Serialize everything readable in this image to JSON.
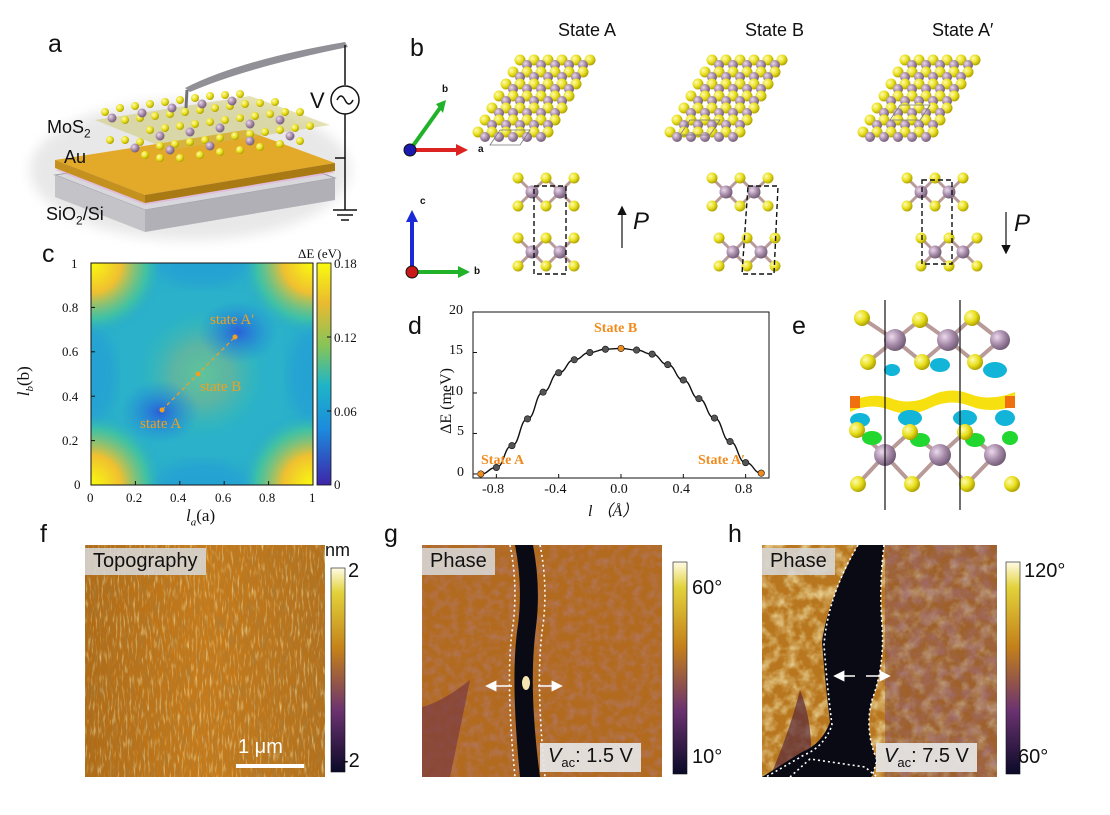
{
  "panels": {
    "a": {
      "letter": "a",
      "labels": {
        "mos2": "MoS",
        "mos2_sub": "2",
        "au": "Au",
        "substrate": "SiO",
        "substrate_sub": "2",
        "substrate_tail": "/Si",
        "voltage": "V"
      }
    },
    "b": {
      "letter": "b",
      "states": [
        "State A",
        "State B",
        "State A′"
      ],
      "axes_top": {
        "a": "a",
        "b": "b"
      },
      "axes_bottom": {
        "c": "c",
        "b": "b"
      },
      "polarization": "P"
    },
    "c": {
      "letter": "c",
      "colorbar_title": "ΔE (eV)",
      "colorbar_ticks": [
        "0.18",
        "0.12",
        "0.06",
        "0"
      ],
      "y_ticks": [
        "1",
        "0.8",
        "0.6",
        "0.4",
        "0.2",
        "0"
      ],
      "x_ticks": [
        "0",
        "0.2",
        "0.4",
        "0.6",
        "0.8",
        "1"
      ],
      "ylabel_main": "l",
      "ylabel_sub": "b",
      "ylabel_tail": "(b)",
      "xlabel_main": "l",
      "xlabel_sub": "a",
      "xlabel_tail": "(a)",
      "annotations": [
        "state A'",
        "state B",
        "state A"
      ],
      "accent": "#f0a020"
    },
    "d": {
      "letter": "d",
      "ylabel": "ΔE (meV)",
      "xlabel": "l （Å）",
      "annotations": [
        "State B",
        "State A",
        "State A′"
      ],
      "accent": "#f08c1e"
    },
    "e": {
      "letter": "e"
    },
    "f": {
      "letter": "f",
      "tag": "Topography",
      "cbar_unit": "nm",
      "cbar_top": "2",
      "cbar_bottom": "-2",
      "scalebar": "1 μm"
    },
    "g": {
      "letter": "g",
      "tag": "Phase",
      "cbar_top": "60°",
      "cbar_bottom": "10°",
      "vac_label": "V",
      "vac_sub": "ac",
      "vac_value": ": 1.5 V"
    },
    "h": {
      "letter": "h",
      "tag": "Phase",
      "cbar_top": "120°",
      "cbar_bottom": "60°",
      "vac_label": "V",
      "vac_sub": "ac",
      "vac_value": ": 7.5 V"
    }
  },
  "chart_data": [
    {
      "type": "line",
      "panel": "d",
      "xlabel": "l （Å）",
      "ylabel": "ΔE (meV)",
      "xlim": [
        -0.95,
        0.95
      ],
      "ylim": [
        -0.5,
        20
      ],
      "x_ticks": [
        -0.8,
        -0.4,
        0.0,
        0.4,
        0.8
      ],
      "y_ticks": [
        0,
        5,
        10,
        15,
        20
      ],
      "series": [
        {
          "x": [
            -0.9,
            -0.8,
            -0.7,
            -0.6,
            -0.5,
            -0.4,
            -0.3,
            -0.2,
            -0.1,
            0.0,
            0.1,
            0.2,
            0.3,
            0.4,
            0.5,
            0.6,
            0.7,
            0.8,
            0.9
          ],
          "values": [
            0.0,
            0.8,
            3.5,
            6.8,
            10.1,
            12.5,
            14.1,
            15.0,
            15.4,
            15.5,
            15.3,
            14.8,
            13.5,
            11.6,
            9.3,
            6.9,
            4.0,
            1.4,
            0.1
          ]
        }
      ],
      "highlighted": [
        {
          "label": "State A",
          "x": -0.9,
          "y": 0.0
        },
        {
          "label": "State B",
          "x": 0.0,
          "y": 15.5
        },
        {
          "label": "State A′",
          "x": 0.9,
          "y": 0.1
        }
      ]
    },
    {
      "type": "heatmap",
      "panel": "c",
      "xlabel": "l(a)",
      "ylabel": "l(b)",
      "xlim": [
        0,
        1
      ],
      "ylim": [
        0,
        1
      ],
      "colorbar_title": "ΔE (eV)",
      "colorbar_range": [
        0,
        0.18
      ],
      "path_points": [
        {
          "label": "state A",
          "x": 0.32,
          "y": 0.34
        },
        {
          "label": "state B",
          "x": 0.48,
          "y": 0.5
        },
        {
          "label": "state A'",
          "x": 0.65,
          "y": 0.67
        }
      ]
    }
  ]
}
